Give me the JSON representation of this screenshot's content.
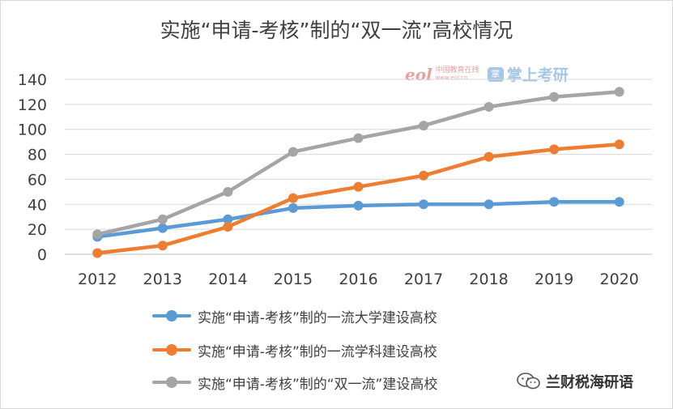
{
  "chart_data": {
    "type": "line",
    "title": "实施“申请-考核”制的“双一流”高校情况",
    "categories": [
      "2012",
      "2013",
      "2014",
      "2015",
      "2016",
      "2017",
      "2018",
      "2019",
      "2020"
    ],
    "yticks": [
      "0",
      "20",
      "40",
      "60",
      "80",
      "100",
      "120",
      "140"
    ],
    "ylim": [
      0,
      140
    ],
    "grid": true,
    "legend_position": "bottom",
    "series": [
      {
        "name": "实施“申请-考核”制的一流大学建设高校",
        "color": "#5b9bd5",
        "values": [
          14,
          21,
          28,
          37,
          39,
          40,
          40,
          42,
          42
        ]
      },
      {
        "name": "实施“申请-考核”制的一流学科建设高校",
        "color": "#ed7d31",
        "values": [
          1,
          7,
          22,
          45,
          54,
          63,
          78,
          84,
          88
        ]
      },
      {
        "name": "实施“申请-考核”制的“双一流”建设高校",
        "color": "#a5a5a5",
        "values": [
          16,
          28,
          50,
          82,
          93,
          103,
          118,
          126,
          130
        ]
      }
    ]
  },
  "watermark": {
    "logo": "eol",
    "logo_cn": "中国教育在线",
    "logo_url": "www.eol.cn",
    "badge_icon": "掌",
    "badge_text": "掌上考研"
  },
  "signature": {
    "icon": "wechat-icon",
    "text": "兰财税海研语"
  }
}
